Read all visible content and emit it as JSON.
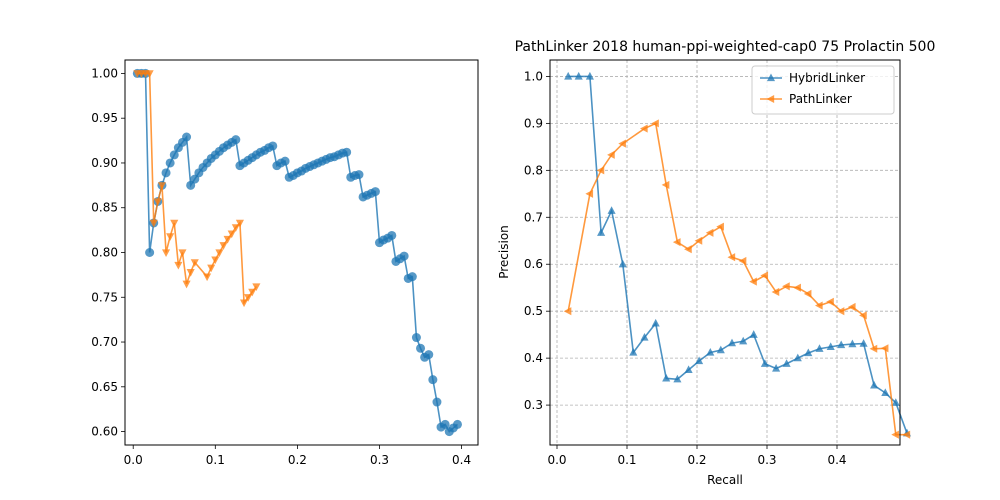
{
  "chart_data": [
    {
      "type": "line",
      "title": "",
      "xlabel": "",
      "ylabel": "",
      "xlim": [
        -0.01,
        0.42
      ],
      "ylim": [
        0.585,
        1.015
      ],
      "xticks": [
        0.0,
        0.1,
        0.2,
        0.3,
        0.4
      ],
      "xtick_labels": [
        "0.0",
        "0.1",
        "0.2",
        "0.3",
        "0.4"
      ],
      "yticks": [
        0.6,
        0.65,
        0.7,
        0.75,
        0.8,
        0.85,
        0.9,
        0.95,
        1.0
      ],
      "ytick_labels": [
        "0.60",
        "0.65",
        "0.70",
        "0.75",
        "0.80",
        "0.85",
        "0.90",
        "0.95",
        "1.00"
      ],
      "grid": false,
      "legend": "none",
      "series": [
        {
          "color": "#1f77b4",
          "marker": "circle",
          "points": [
            [
              0.005,
              1.0
            ],
            [
              0.01,
              1.0
            ],
            [
              0.015,
              1.0
            ],
            [
              0.02,
              0.8
            ],
            [
              0.025,
              0.833
            ],
            [
              0.03,
              0.857
            ],
            [
              0.035,
              0.875
            ],
            [
              0.04,
              0.889
            ],
            [
              0.045,
              0.9
            ],
            [
              0.05,
              0.909
            ],
            [
              0.055,
              0.917
            ],
            [
              0.06,
              0.923
            ],
            [
              0.065,
              0.929
            ],
            [
              0.07,
              0.875
            ],
            [
              0.075,
              0.882
            ],
            [
              0.08,
              0.889
            ],
            [
              0.085,
              0.895
            ],
            [
              0.09,
              0.9
            ],
            [
              0.095,
              0.905
            ],
            [
              0.1,
              0.909
            ],
            [
              0.105,
              0.913
            ],
            [
              0.11,
              0.917
            ],
            [
              0.115,
              0.92
            ],
            [
              0.12,
              0.923
            ],
            [
              0.125,
              0.926
            ],
            [
              0.13,
              0.897
            ],
            [
              0.135,
              0.9
            ],
            [
              0.14,
              0.903
            ],
            [
              0.145,
              0.906
            ],
            [
              0.15,
              0.909
            ],
            [
              0.155,
              0.912
            ],
            [
              0.16,
              0.914
            ],
            [
              0.165,
              0.917
            ],
            [
              0.17,
              0.919
            ],
            [
              0.175,
              0.897
            ],
            [
              0.18,
              0.9
            ],
            [
              0.185,
              0.902
            ],
            [
              0.19,
              0.884
            ],
            [
              0.195,
              0.886
            ],
            [
              0.2,
              0.889
            ],
            [
              0.205,
              0.891
            ],
            [
              0.21,
              0.894
            ],
            [
              0.215,
              0.896
            ],
            [
              0.22,
              0.898
            ],
            [
              0.225,
              0.9
            ],
            [
              0.23,
              0.902
            ],
            [
              0.235,
              0.904
            ],
            [
              0.24,
              0.906
            ],
            [
              0.245,
              0.907
            ],
            [
              0.25,
              0.909
            ],
            [
              0.255,
              0.911
            ],
            [
              0.26,
              0.912
            ],
            [
              0.265,
              0.884
            ],
            [
              0.27,
              0.886
            ],
            [
              0.275,
              0.887
            ],
            [
              0.28,
              0.862
            ],
            [
              0.285,
              0.864
            ],
            [
              0.29,
              0.866
            ],
            [
              0.295,
              0.868
            ],
            [
              0.3,
              0.811
            ],
            [
              0.305,
              0.814
            ],
            [
              0.31,
              0.816
            ],
            [
              0.315,
              0.819
            ],
            [
              0.32,
              0.79
            ],
            [
              0.325,
              0.793
            ],
            [
              0.33,
              0.796
            ],
            [
              0.335,
              0.771
            ],
            [
              0.34,
              0.773
            ],
            [
              0.345,
              0.705
            ],
            [
              0.35,
              0.693
            ],
            [
              0.355,
              0.683
            ],
            [
              0.36,
              0.686
            ],
            [
              0.365,
              0.658
            ],
            [
              0.37,
              0.633
            ],
            [
              0.375,
              0.605
            ],
            [
              0.38,
              0.608
            ],
            [
              0.385,
              0.6
            ],
            [
              0.39,
              0.604
            ],
            [
              0.395,
              0.608
            ]
          ]
        },
        {
          "color": "#ff7f0e",
          "marker": "triangle-down",
          "points": [
            [
              0.005,
              1.0
            ],
            [
              0.01,
              1.0
            ],
            [
              0.015,
              1.0
            ],
            [
              0.02,
              1.0
            ],
            [
              0.025,
              0.833
            ],
            [
              0.03,
              0.857
            ],
            [
              0.035,
              0.875
            ],
            [
              0.04,
              0.8
            ],
            [
              0.045,
              0.818
            ],
            [
              0.05,
              0.833
            ],
            [
              0.055,
              0.786
            ],
            [
              0.06,
              0.8
            ],
            [
              0.065,
              0.765
            ],
            [
              0.07,
              0.778
            ],
            [
              0.075,
              0.789
            ],
            [
              0.09,
              0.773
            ],
            [
              0.095,
              0.783
            ],
            [
              0.1,
              0.792
            ],
            [
              0.105,
              0.8
            ],
            [
              0.11,
              0.808
            ],
            [
              0.115,
              0.815
            ],
            [
              0.12,
              0.821
            ],
            [
              0.125,
              0.828
            ],
            [
              0.13,
              0.833
            ],
            [
              0.135,
              0.744
            ],
            [
              0.14,
              0.75
            ],
            [
              0.145,
              0.756
            ],
            [
              0.15,
              0.762
            ]
          ]
        }
      ]
    },
    {
      "type": "line",
      "title": "PathLinker 2018 human-ppi-weighted-cap0 75 Prolactin 500",
      "xlabel": "Recall",
      "ylabel": "Precision",
      "xlim": [
        -0.01,
        0.49
      ],
      "ylim": [
        0.215,
        1.035
      ],
      "xticks": [
        0.0,
        0.1,
        0.2,
        0.3,
        0.4
      ],
      "xtick_labels": [
        "0.0",
        "0.1",
        "0.2",
        "0.3",
        "0.4"
      ],
      "yticks": [
        0.3,
        0.4,
        0.5,
        0.6,
        0.7,
        0.8,
        0.9,
        1.0
      ],
      "ytick_labels": [
        "0.3",
        "0.4",
        "0.5",
        "0.6",
        "0.7",
        "0.8",
        "0.9",
        "1.0"
      ],
      "grid": true,
      "legend": "top-right",
      "series": [
        {
          "name": "HybridLinker",
          "color": "#1f77b4",
          "marker": "triangle-up",
          "points": [
            [
              0.016,
              1.0
            ],
            [
              0.031,
              1.0
            ],
            [
              0.047,
              1.0
            ],
            [
              0.063,
              0.667
            ],
            [
              0.078,
              0.714
            ],
            [
              0.094,
              0.6
            ],
            [
              0.109,
              0.412
            ],
            [
              0.125,
              0.444
            ],
            [
              0.141,
              0.474
            ],
            [
              0.156,
              0.357
            ],
            [
              0.172,
              0.355
            ],
            [
              0.188,
              0.375
            ],
            [
              0.203,
              0.394
            ],
            [
              0.219,
              0.412
            ],
            [
              0.234,
              0.417
            ],
            [
              0.25,
              0.432
            ],
            [
              0.266,
              0.436
            ],
            [
              0.281,
              0.45
            ],
            [
              0.297,
              0.388
            ],
            [
              0.313,
              0.378
            ],
            [
              0.328,
              0.388
            ],
            [
              0.344,
              0.4
            ],
            [
              0.359,
              0.411
            ],
            [
              0.375,
              0.42
            ],
            [
              0.391,
              0.424
            ],
            [
              0.406,
              0.428
            ],
            [
              0.422,
              0.43
            ],
            [
              0.438,
              0.431
            ],
            [
              0.453,
              0.342
            ],
            [
              0.469,
              0.326
            ],
            [
              0.484,
              0.305
            ],
            [
              0.5,
              0.24
            ]
          ]
        },
        {
          "name": "PathLinker",
          "color": "#ff7f0e",
          "marker": "triangle-left",
          "points": [
            [
              0.016,
              0.5
            ],
            [
              0.047,
              0.75
            ],
            [
              0.063,
              0.8
            ],
            [
              0.078,
              0.833
            ],
            [
              0.094,
              0.857
            ],
            [
              0.125,
              0.889
            ],
            [
              0.141,
              0.9
            ],
            [
              0.156,
              0.769
            ],
            [
              0.172,
              0.647
            ],
            [
              0.188,
              0.632
            ],
            [
              0.203,
              0.65
            ],
            [
              0.219,
              0.667
            ],
            [
              0.234,
              0.68
            ],
            [
              0.25,
              0.615
            ],
            [
              0.266,
              0.607
            ],
            [
              0.281,
              0.563
            ],
            [
              0.297,
              0.576
            ],
            [
              0.313,
              0.541
            ],
            [
              0.328,
              0.553
            ],
            [
              0.344,
              0.55
            ],
            [
              0.359,
              0.537
            ],
            [
              0.375,
              0.512
            ],
            [
              0.391,
              0.52
            ],
            [
              0.406,
              0.5
            ],
            [
              0.422,
              0.509
            ],
            [
              0.438,
              0.491
            ],
            [
              0.453,
              0.42
            ],
            [
              0.469,
              0.421
            ],
            [
              0.484,
              0.237
            ],
            [
              0.5,
              0.237
            ]
          ]
        }
      ]
    }
  ]
}
